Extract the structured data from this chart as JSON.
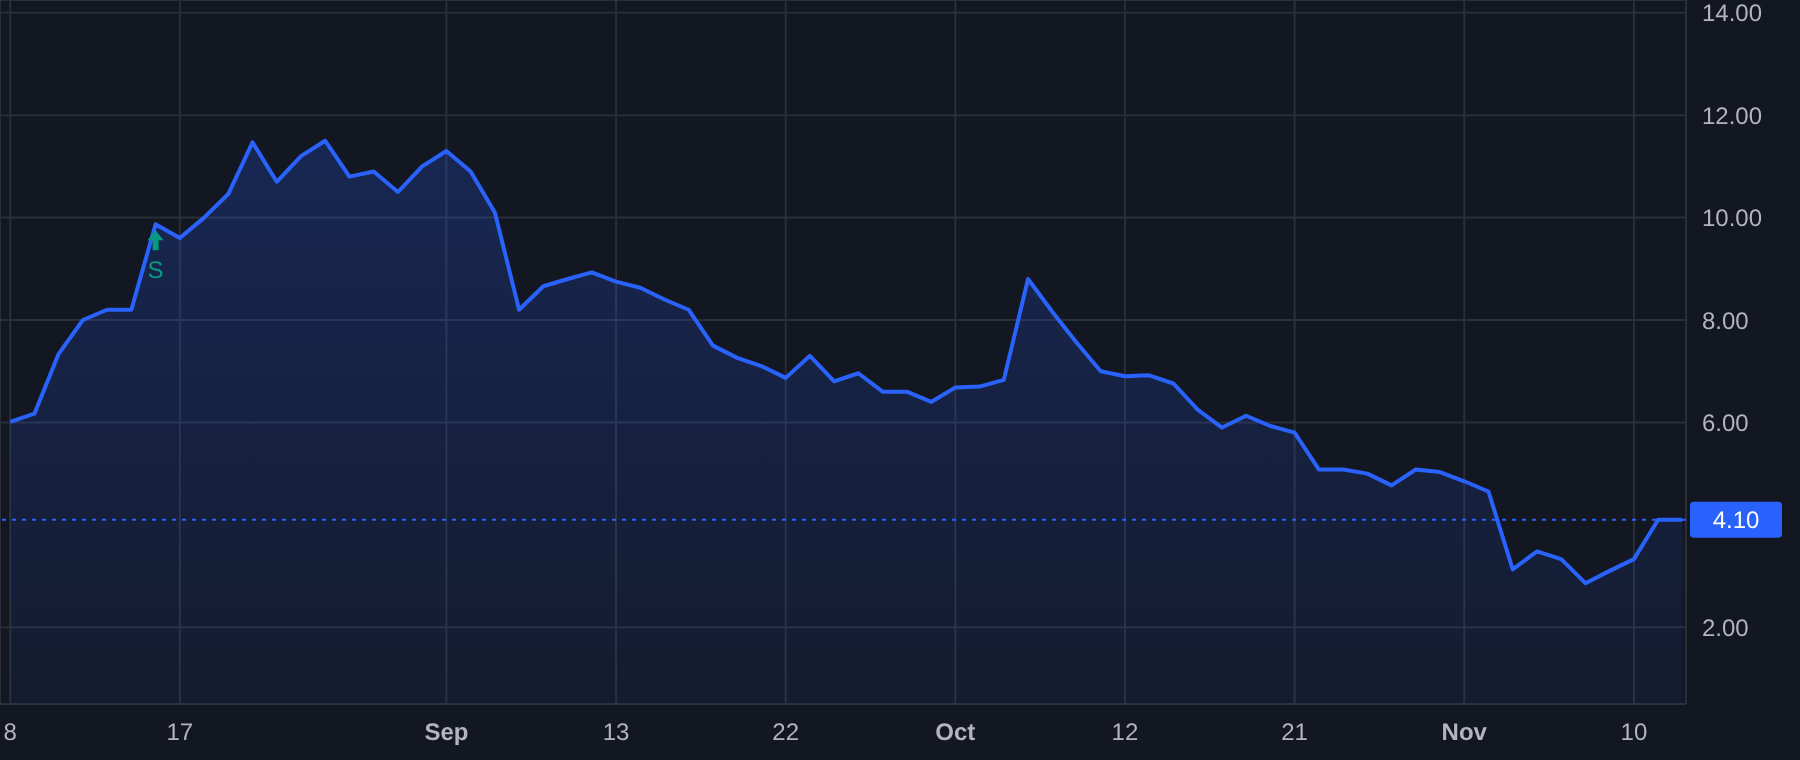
{
  "chart_data": {
    "type": "area",
    "categories": [
      "8",
      null,
      null,
      null,
      null,
      null,
      null,
      "17",
      null,
      null,
      null,
      null,
      null,
      null,
      null,
      null,
      null,
      null,
      "Sep",
      null,
      null,
      null,
      null,
      null,
      null,
      "13",
      null,
      null,
      null,
      null,
      null,
      null,
      "22",
      null,
      null,
      null,
      null,
      null,
      null,
      "Oct",
      null,
      null,
      null,
      null,
      null,
      null,
      "12",
      null,
      null,
      null,
      null,
      null,
      null,
      "21",
      null,
      null,
      null,
      null,
      null,
      null,
      "Nov",
      null,
      null,
      null,
      null,
      null,
      null,
      "10",
      null,
      null
    ],
    "series": [
      {
        "color": "#2962ff",
        "values": [
          6.01,
          6.17,
          7.34,
          8.0,
          8.2,
          8.2,
          9.87,
          9.6,
          10.0,
          10.46,
          11.47,
          10.7,
          11.2,
          11.5,
          10.8,
          10.9,
          10.5,
          11.0,
          11.3,
          10.9,
          10.1,
          8.2,
          8.66,
          8.8,
          8.93,
          8.75,
          8.63,
          8.4,
          8.2,
          7.5,
          7.26,
          7.1,
          6.87,
          7.3,
          6.8,
          6.96,
          6.6,
          6.6,
          6.4,
          6.68,
          6.7,
          6.83,
          8.8,
          8.16,
          7.56,
          7.0,
          6.9,
          6.92,
          6.76,
          6.25,
          5.9,
          6.13,
          5.93,
          5.8,
          5.08,
          5.08,
          5.0,
          4.77,
          5.08,
          5.03,
          4.85,
          4.65,
          3.13,
          3.48,
          3.33,
          2.86,
          3.1,
          3.33,
          4.1,
          4.1
        ]
      }
    ],
    "ylim": [
      0.5,
      14.25
    ],
    "yticks": [
      {
        "value": 2,
        "label": "2.00"
      },
      {
        "value": 6,
        "label": "6.00"
      },
      {
        "value": 8,
        "label": "8.00"
      },
      {
        "value": 10,
        "label": "10.00"
      },
      {
        "value": 12,
        "label": "12.00"
      },
      {
        "value": 14,
        "label": "14.00"
      }
    ],
    "ref_lines": [
      {
        "axis": "y",
        "value": 4.1,
        "label": "4.10",
        "color": "#2962ff",
        "line_style": "dotted"
      }
    ],
    "annotations": [
      {
        "text": "S",
        "y": 9.87
      }
    ],
    "grid": true
  }
}
